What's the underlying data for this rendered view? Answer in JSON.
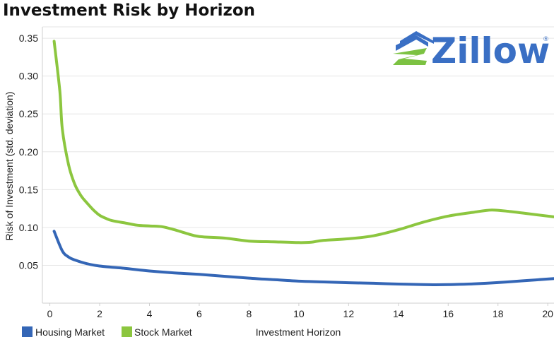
{
  "colors": {
    "housing": "#3466b6",
    "stock": "#8cc63f",
    "logo_blue": "#3a6fc4",
    "logo_green": "#7cc242",
    "grid": "#e6e6e6"
  },
  "logo": {
    "text": "Zillow",
    "mark": "®",
    "icon": "zillow-house-icon"
  },
  "chart_data": {
    "type": "line",
    "title": "Investment Risk by Horizon",
    "xlabel": "Investment Horizon",
    "ylabel": "Risk of Investment (std. deviation)",
    "xlim": [
      -0.3,
      20.25
    ],
    "ylim": [
      0.0,
      0.365
    ],
    "x_ticks": [
      "0",
      "2",
      "4",
      "6",
      "8",
      "10",
      "12",
      "14",
      "16",
      "18",
      "20"
    ],
    "y_ticks": [
      "0.05",
      "0.10",
      "0.15",
      "0.20",
      "0.25",
      "0.30",
      "0.35"
    ],
    "grid": "horizontal",
    "legend_position": "bottom-left",
    "series": [
      {
        "name": "Housing Market",
        "color": "#3466b6",
        "points": [
          [
            0.17,
            0.095
          ],
          [
            0.5,
            0.069
          ],
          [
            0.75,
            0.061
          ],
          [
            1,
            0.057
          ],
          [
            1.5,
            0.052
          ],
          [
            2,
            0.049
          ],
          [
            3,
            0.046
          ],
          [
            4,
            0.0425
          ],
          [
            5,
            0.04
          ],
          [
            6,
            0.038
          ],
          [
            7,
            0.0355
          ],
          [
            8,
            0.033
          ],
          [
            9,
            0.031
          ],
          [
            10,
            0.029
          ],
          [
            11,
            0.028
          ],
          [
            12,
            0.027
          ],
          [
            13,
            0.0262
          ],
          [
            14,
            0.0252
          ],
          [
            15,
            0.0245
          ],
          [
            15.5,
            0.0243
          ],
          [
            16,
            0.0245
          ],
          [
            17,
            0.0255
          ],
          [
            18,
            0.0272
          ],
          [
            19,
            0.0295
          ],
          [
            20.25,
            0.0325
          ]
        ]
      },
      {
        "name": "Stock Market",
        "color": "#8cc63f",
        "points": [
          [
            0.17,
            0.346
          ],
          [
            0.4,
            0.28
          ],
          [
            0.5,
            0.23
          ],
          [
            0.75,
            0.183
          ],
          [
            1,
            0.157
          ],
          [
            1.25,
            0.142
          ],
          [
            1.5,
            0.132
          ],
          [
            1.75,
            0.123
          ],
          [
            2,
            0.116
          ],
          [
            2.25,
            0.112
          ],
          [
            2.5,
            0.109
          ],
          [
            3,
            0.106
          ],
          [
            3.5,
            0.103
          ],
          [
            4,
            0.102
          ],
          [
            4.5,
            0.101
          ],
          [
            5,
            0.097
          ],
          [
            5.5,
            0.092
          ],
          [
            6,
            0.088
          ],
          [
            7,
            0.086
          ],
          [
            8,
            0.082
          ],
          [
            9,
            0.081
          ],
          [
            10,
            0.08
          ],
          [
            10.5,
            0.0805
          ],
          [
            11,
            0.083
          ],
          [
            12,
            0.085
          ],
          [
            13,
            0.089
          ],
          [
            14,
            0.097
          ],
          [
            15,
            0.107
          ],
          [
            16,
            0.115
          ],
          [
            17,
            0.12
          ],
          [
            17.75,
            0.123
          ],
          [
            18.5,
            0.121
          ],
          [
            19,
            0.119
          ],
          [
            20.25,
            0.114
          ]
        ]
      }
    ]
  }
}
